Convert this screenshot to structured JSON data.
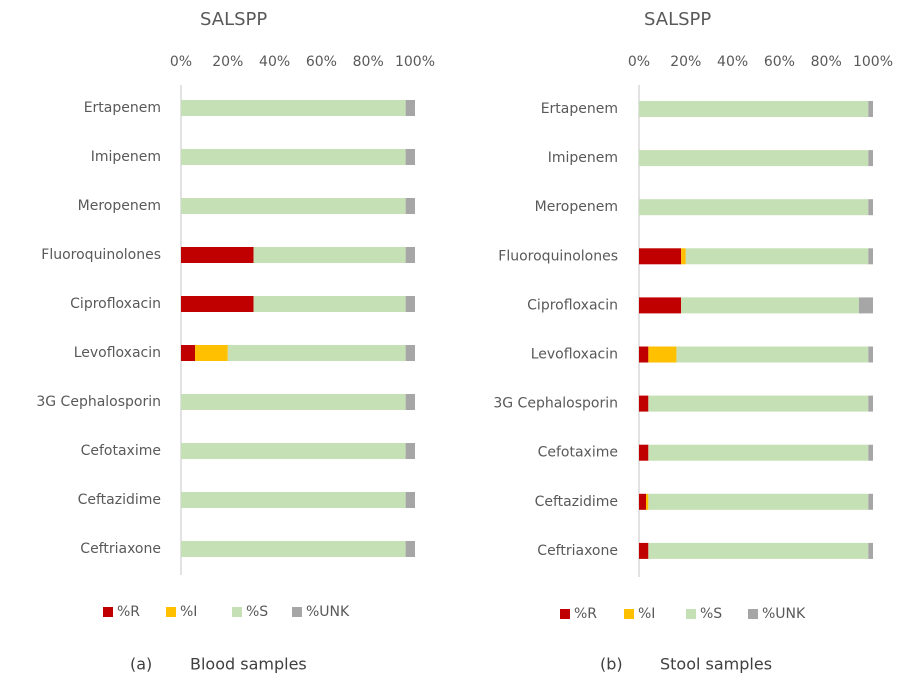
{
  "chart_data": [
    {
      "type": "stacked-bar-horizontal",
      "title": "SALSPP",
      "caption_label": "(a)",
      "caption": "Blood samples",
      "categories": [
        "Ertapenem",
        "Imipenem",
        "Meropenem",
        "Fluoroquinolones",
        "Ciprofloxacin",
        "Levofloxacin",
        "3G Cephalosporin",
        "Cefotaxime",
        "Ceftazidime",
        "Ceftriaxone"
      ],
      "series": [
        {
          "name": "%R",
          "color": "#c00000",
          "values": [
            0,
            0,
            0,
            31,
            31,
            6,
            0,
            0,
            0,
            0
          ]
        },
        {
          "name": "%I",
          "color": "#ffc000",
          "values": [
            0,
            0,
            0,
            0,
            0,
            14,
            0,
            0,
            0,
            0
          ]
        },
        {
          "name": "%S",
          "color": "#c5e0b4",
          "values": [
            96,
            96,
            96,
            65,
            65,
            76,
            96,
            96,
            96,
            96
          ]
        },
        {
          "name": "%UNK",
          "color": "#a6a6a6",
          "values": [
            4,
            4,
            4,
            4,
            4,
            4,
            4,
            4,
            4,
            4
          ]
        }
      ],
      "xlim": [
        0,
        100
      ],
      "xticks": [
        {
          "value": 0,
          "label": "0%"
        },
        {
          "value": 20,
          "label": "20%"
        },
        {
          "value": 40,
          "label": "40%"
        },
        {
          "value": 60,
          "label": "60%"
        },
        {
          "value": 80,
          "label": "80%"
        },
        {
          "value": 100,
          "label": "100%"
        }
      ],
      "legend": "bottom"
    },
    {
      "type": "stacked-bar-horizontal",
      "title": "SALSPP",
      "caption_label": "(b)",
      "caption": "Stool samples",
      "categories": [
        "Ertapenem",
        "Imipenem",
        "Meropenem",
        "Fluoroquinolones",
        "Ciprofloxacin",
        "Levofloxacin",
        "3G Cephalosporin",
        "Cefotaxime",
        "Ceftazidime",
        "Ceftriaxone"
      ],
      "series": [
        {
          "name": "%R",
          "color": "#c00000",
          "values": [
            0,
            0,
            0,
            18,
            18,
            4,
            4,
            4,
            3,
            4
          ]
        },
        {
          "name": "%I",
          "color": "#ffc000",
          "values": [
            0,
            0,
            0,
            2,
            0,
            12,
            0,
            0,
            1,
            0
          ]
        },
        {
          "name": "%S",
          "color": "#c5e0b4",
          "values": [
            98,
            98,
            98,
            78,
            76,
            82,
            94,
            94,
            94,
            94
          ]
        },
        {
          "name": "%UNK",
          "color": "#a6a6a6",
          "values": [
            2,
            2,
            2,
            2,
            6,
            2,
            2,
            2,
            2,
            2
          ]
        }
      ],
      "xlim": [
        0,
        100
      ],
      "xticks": [
        {
          "value": 0,
          "label": "0%"
        },
        {
          "value": 20,
          "label": "20%"
        },
        {
          "value": 40,
          "label": "40%"
        },
        {
          "value": 60,
          "label": "60%"
        },
        {
          "value": 80,
          "label": "80%"
        },
        {
          "value": 100,
          "label": "100%"
        }
      ],
      "legend": "bottom"
    }
  ]
}
